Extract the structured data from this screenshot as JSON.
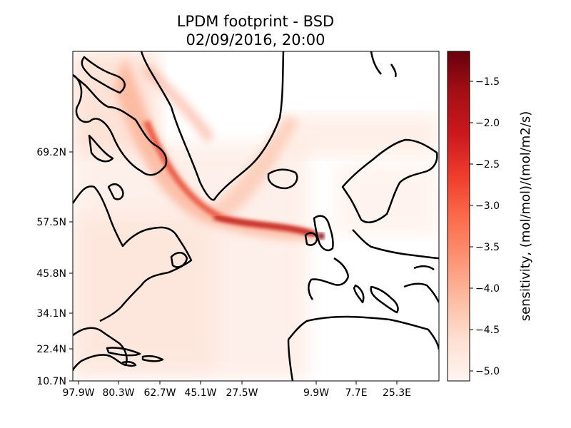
{
  "title_line1": "LPDM footprint - BSD",
  "title_line2": "02/09/2016, 20:00",
  "map": {
    "y_ticks": [
      "69.2N",
      "57.5N",
      "45.8N",
      "34.1N",
      "22.4N",
      "10.7N"
    ],
    "x_ticks": [
      "97.9W",
      "80.3W",
      "62.7W",
      "45.1W",
      "27.5W",
      "9.9W",
      "7.7E",
      "25.3E"
    ]
  },
  "colorbar": {
    "label": "sensitivity, (mol/mol)/(mol/m2/s)",
    "colormap": "Reds",
    "ticks": [
      "−1.5",
      "−2.0",
      "−2.5",
      "−3.0",
      "−3.5",
      "−4.0",
      "−4.5",
      "−5.0"
    ],
    "low_color": "#fff5f0",
    "high_color": "#67000d"
  }
}
